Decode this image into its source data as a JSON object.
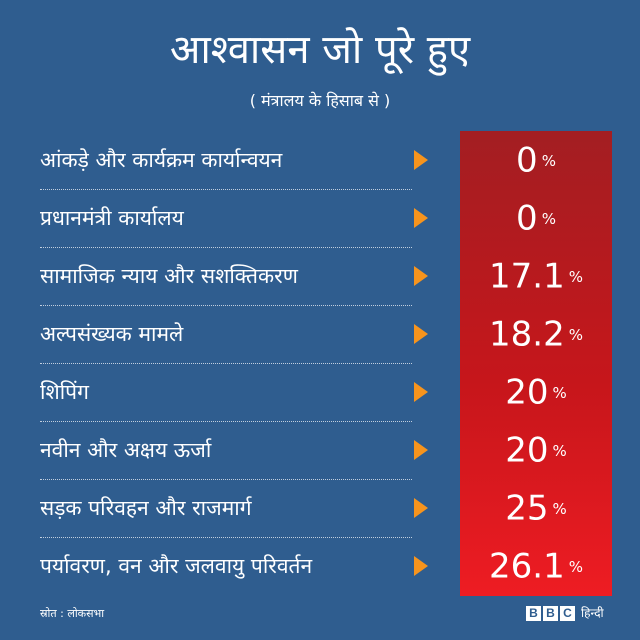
{
  "header": {
    "title": "आश्वासन जो पूरे हुए",
    "subtitle": "( मंत्रालय के हिसाब से )"
  },
  "chart_data": {
    "type": "table",
    "title": "आश्वासन जो पूरे हुए",
    "subtitle": "( मंत्रालय के हिसाब से )",
    "unit": "%",
    "categories": [
      "आंकड़े और कार्यक्रम कार्यान्वयन",
      "प्रधानमंत्री कार्यालय",
      "सामाजिक न्याय और सशक्तिकरण",
      "अल्पसंख्यक मामले",
      "शिपिंग",
      "नवीन और अक्षय ऊर्जा",
      "सड़क परिवहन और राजमार्ग",
      "पर्यावरण, वन और जलवायु परिवर्तन"
    ],
    "values": [
      "0",
      "0",
      "17.1",
      "18.2",
      "20",
      "20",
      "25",
      "26.1"
    ]
  },
  "footer": {
    "source": "स्रोत : लोकसभा",
    "logo_letters": [
      "B",
      "B",
      "C"
    ],
    "logo_text": "हिन्दी"
  },
  "colors": {
    "background": "#2f5d8f",
    "value_panel_top": "#a31e22",
    "value_panel_bottom": "#ee1c23",
    "arrow": "#f7941d"
  },
  "icons": {
    "row_arrow": "triangle-right-icon"
  }
}
